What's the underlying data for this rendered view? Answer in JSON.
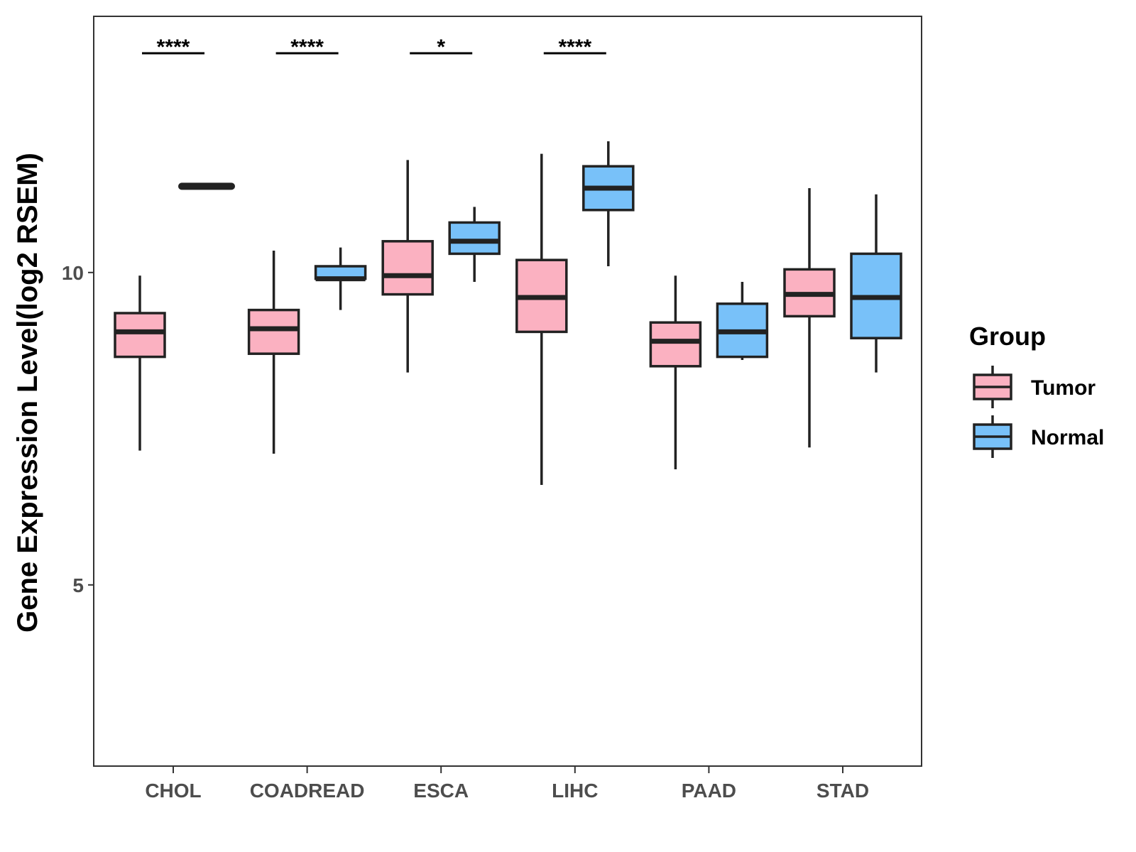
{
  "chart_data": {
    "type": "boxplot",
    "title": "",
    "xlabel": "",
    "ylabel": "Gene Expression Level(log2 RSEM)",
    "ylim": [
      2.1,
      14.1
    ],
    "yticks": [
      5,
      10
    ],
    "ytick_labels": [
      "5",
      "10"
    ],
    "categories": [
      "CHOL",
      "COADREAD",
      "ESCA",
      "LIHC",
      "PAAD",
      "STAD"
    ],
    "legend": {
      "title": "Group",
      "position": "right",
      "entries": [
        "Tumor",
        "Normal"
      ]
    },
    "colors": {
      "Tumor": "#FBB1C1",
      "Normal": "#78C1F9",
      "line": "#222222"
    },
    "series": [
      {
        "name": "Tumor",
        "boxes": [
          {
            "category": "CHOL",
            "whisker_low": 7.15,
            "q1": 8.65,
            "median": 9.05,
            "q3": 9.35,
            "whisker_high": 9.95
          },
          {
            "category": "COADREAD",
            "whisker_low": 7.1,
            "q1": 8.7,
            "median": 9.1,
            "q3": 9.4,
            "whisker_high": 10.35
          },
          {
            "category": "ESCA",
            "whisker_low": 8.4,
            "q1": 9.65,
            "median": 9.95,
            "q3": 10.5,
            "whisker_high": 11.8
          },
          {
            "category": "LIHC",
            "whisker_low": 6.6,
            "q1": 9.05,
            "median": 9.6,
            "q3": 10.2,
            "whisker_high": 11.9
          },
          {
            "category": "PAAD",
            "whisker_low": 6.85,
            "q1": 8.5,
            "median": 8.9,
            "q3": 9.2,
            "whisker_high": 9.95
          },
          {
            "category": "STAD",
            "whisker_low": 7.2,
            "q1": 9.3,
            "median": 9.65,
            "q3": 10.05,
            "whisker_high": 11.35
          }
        ]
      },
      {
        "name": "Normal",
        "boxes": [
          {
            "category": "CHOL",
            "whisker_low": 11.38,
            "q1": 11.38,
            "median": 11.38,
            "q3": 11.38,
            "whisker_high": 11.38
          },
          {
            "category": "COADREAD",
            "whisker_low": 9.4,
            "q1": 9.9,
            "median": 9.9,
            "q3": 10.1,
            "whisker_high": 10.4
          },
          {
            "category": "ESCA",
            "whisker_low": 9.85,
            "q1": 10.3,
            "median": 10.5,
            "q3": 10.8,
            "whisker_high": 11.05
          },
          {
            "category": "LIHC",
            "whisker_low": 10.1,
            "q1": 11.0,
            "median": 11.35,
            "q3": 11.7,
            "whisker_high": 12.1
          },
          {
            "category": "PAAD",
            "whisker_low": 8.6,
            "q1": 8.65,
            "median": 9.05,
            "q3": 9.5,
            "whisker_high": 9.85
          },
          {
            "category": "STAD",
            "whisker_low": 8.4,
            "q1": 8.95,
            "median": 9.6,
            "q3": 10.3,
            "whisker_high": 11.25
          }
        ]
      }
    ],
    "significance": [
      {
        "category": "CHOL",
        "label": "****"
      },
      {
        "category": "COADREAD",
        "label": "****"
      },
      {
        "category": "ESCA",
        "label": "*"
      },
      {
        "category": "LIHC",
        "label": "****"
      }
    ]
  }
}
